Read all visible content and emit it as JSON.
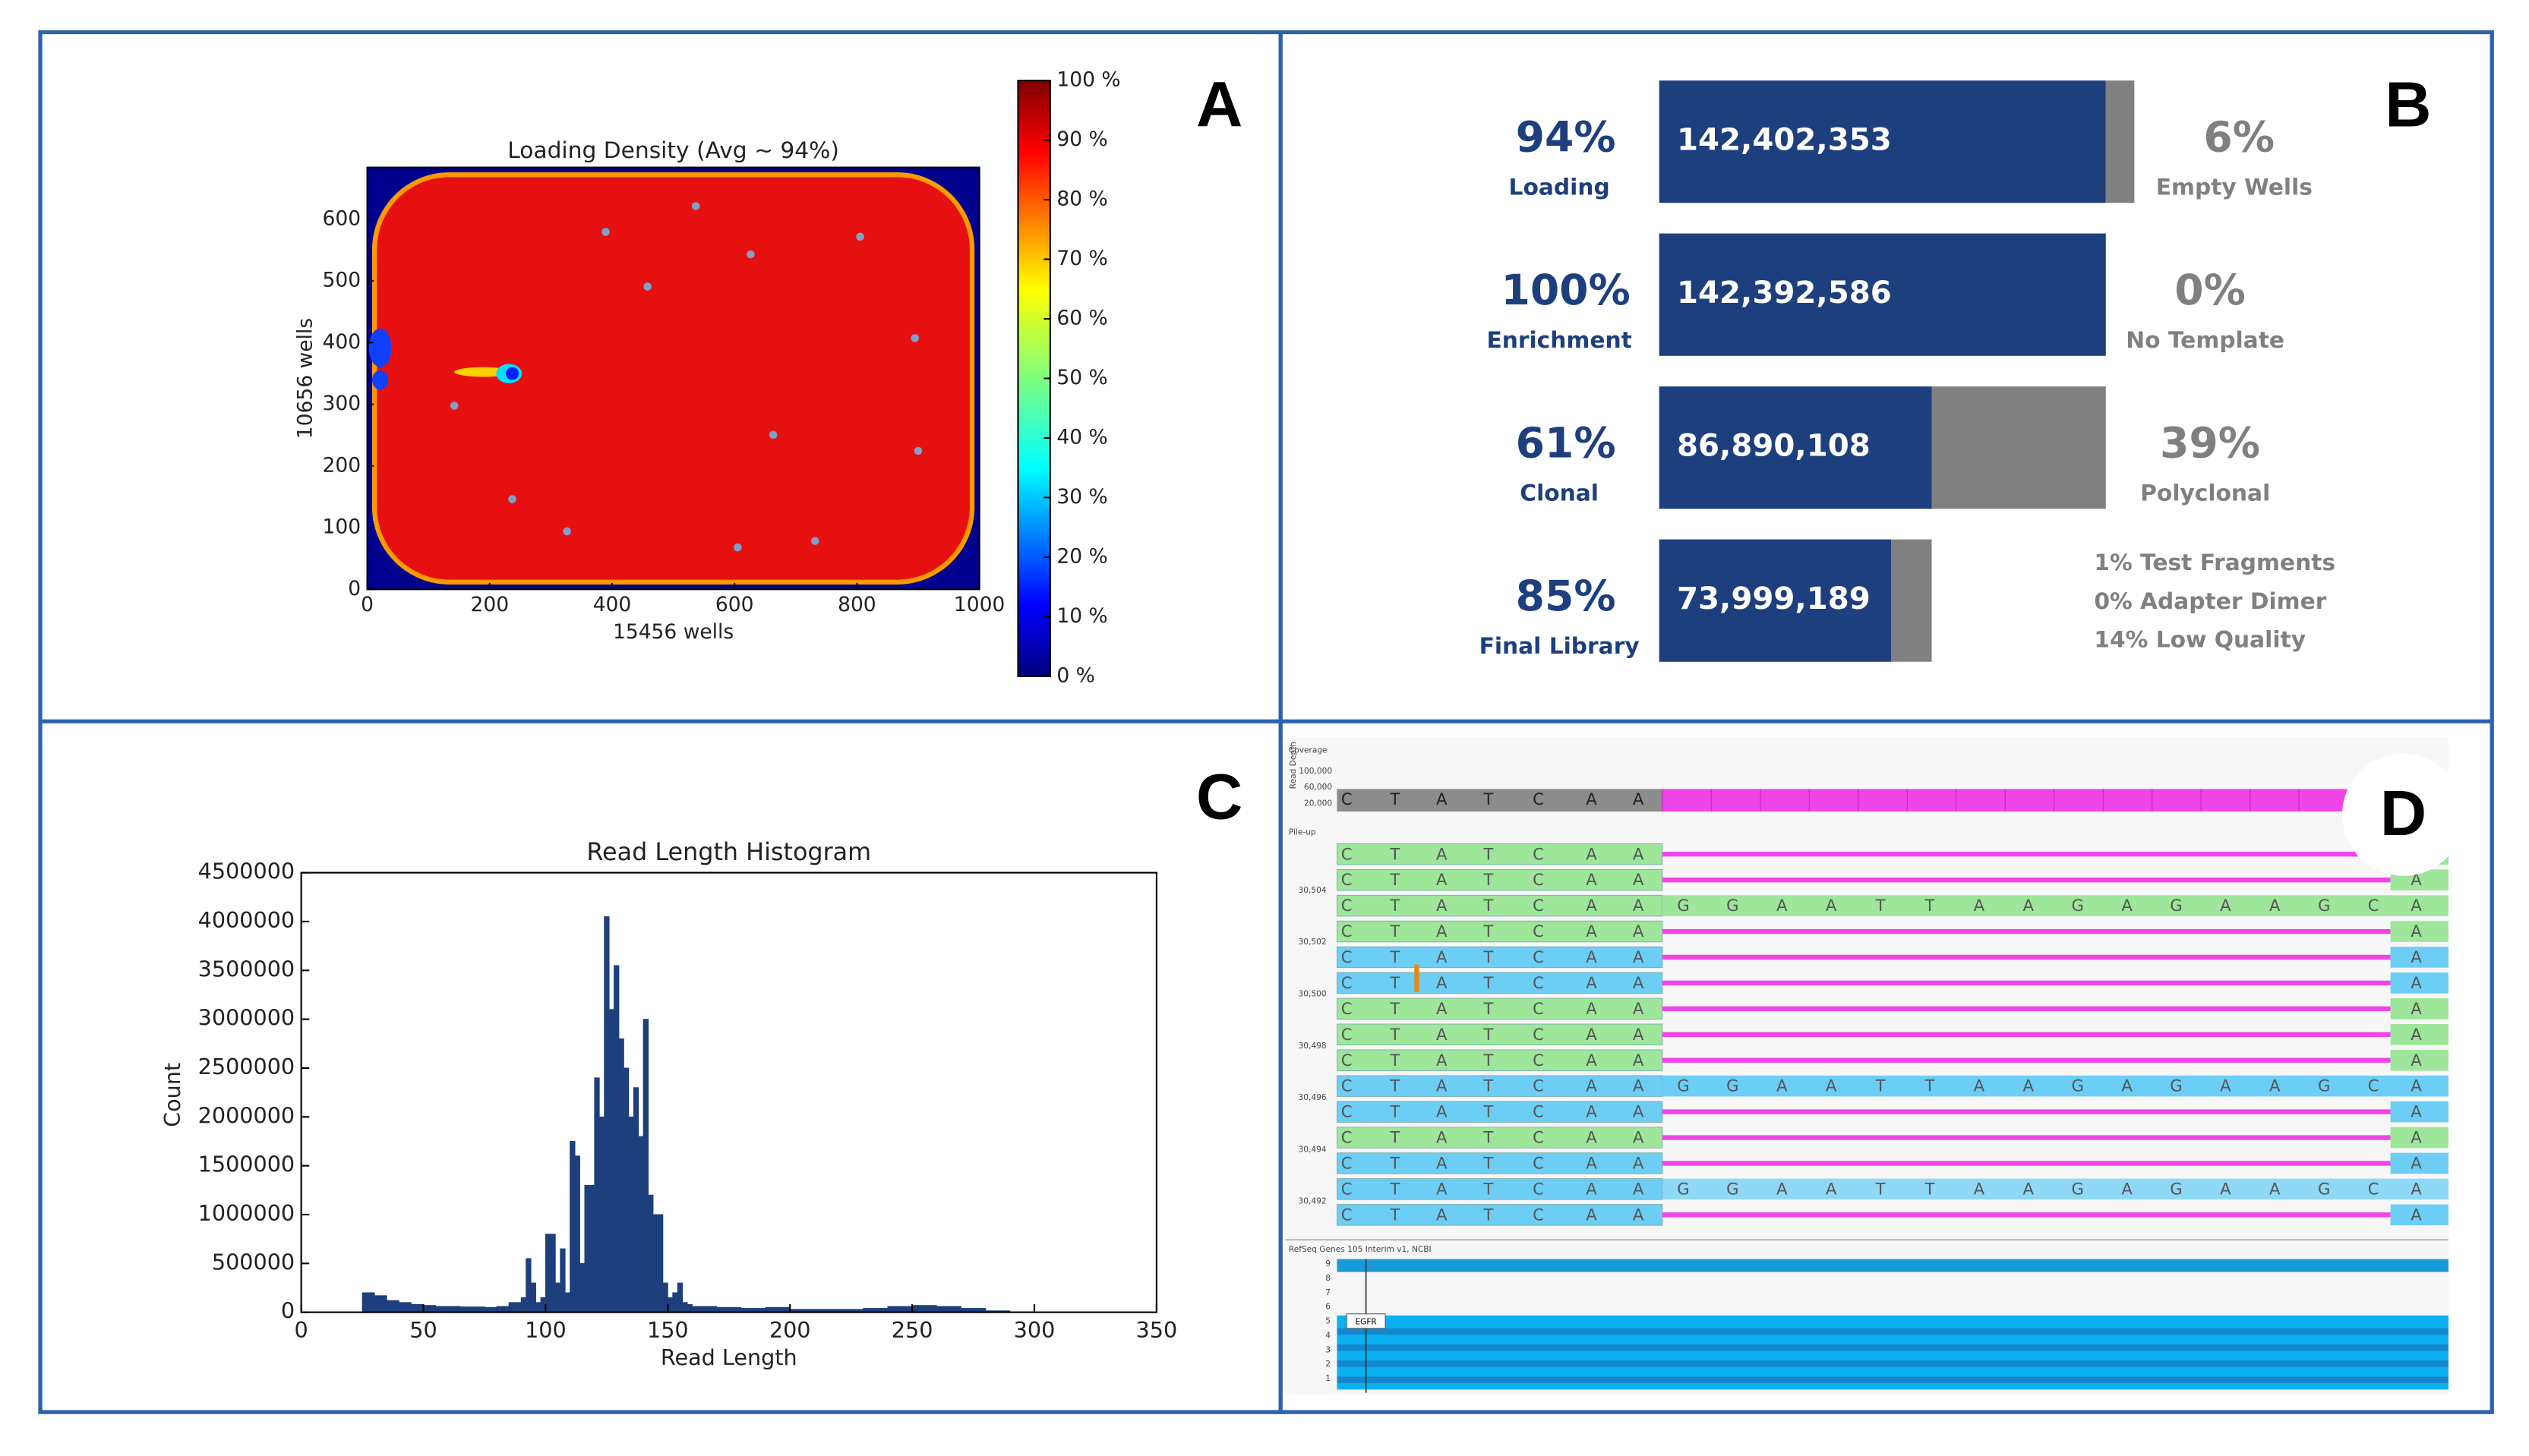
{
  "chart_data": [
    {
      "type": "heatmap",
      "label": "A",
      "title": "Loading Density (Avg ~ 94%)",
      "x_label": "15456 wells",
      "y_label": "10656 wells",
      "xlim": [
        0,
        1000
      ],
      "ylim": [
        0,
        684
      ],
      "xticks": [
        0,
        200,
        400,
        600,
        800,
        1000
      ],
      "yticks": [
        0,
        100,
        200,
        300,
        400,
        500,
        600
      ],
      "colormap": "jet",
      "colorbar": {
        "lim": [
          0,
          100
        ],
        "ticks": [
          {
            "value": 100,
            "label": "100 %"
          },
          {
            "value": 90,
            "label": "90 %"
          },
          {
            "value": 80,
            "label": "80 %"
          },
          {
            "value": 70,
            "label": "70 %"
          },
          {
            "value": 60,
            "label": "60 %"
          },
          {
            "value": 50,
            "label": "50 %"
          },
          {
            "value": 40,
            "label": "40 %"
          },
          {
            "value": 30,
            "label": "30 %"
          },
          {
            "value": 20,
            "label": "20 %"
          },
          {
            "value": 10,
            "label": "10 %"
          },
          {
            "value": 0,
            "label": "0 %"
          }
        ]
      }
    },
    {
      "type": "funnel",
      "label": "B",
      "categories": [
        "Loading",
        "Enrichment",
        "Clonal",
        "Final Library"
      ],
      "series": [
        {
          "color": "#1d3f7d",
          "values": [
            142402353,
            142392586,
            86890108,
            73999189
          ],
          "value_labels": [
            "142,402,353",
            "142,392,586",
            "86,890,108",
            "73,999,189"
          ]
        },
        {
          "color": "#808080",
          "values": [
            9090000,
            9767,
            55502478,
            12890919
          ]
        }
      ],
      "xlim": [
        0,
        151492353
      ],
      "percent_labels": [
        "94%",
        "100%",
        "61%",
        "85%"
      ],
      "remainder_percent_labels": [
        "6%",
        "0%",
        "39%"
      ],
      "remainder_names": [
        "Empty Wells",
        "No Template",
        "Polyclonal"
      ],
      "notes": [
        "1% Test Fragments",
        "0% Adapter Dimer",
        "14% Low Quality"
      ]
    },
    {
      "type": "histogram",
      "label": "C",
      "title": "Read Length Histogram",
      "x_label": "Read Length",
      "y_label": "Count",
      "color": "#1d3f7d",
      "bins": [
        25,
        30,
        35,
        40,
        45,
        50,
        55,
        60,
        65,
        70,
        75,
        80,
        85,
        90,
        92,
        94,
        96,
        98,
        100,
        102,
        104,
        106,
        108,
        110,
        112,
        114,
        116,
        118,
        120,
        122,
        124,
        126,
        128,
        130,
        132,
        134,
        136,
        138,
        140,
        142,
        144,
        146,
        148,
        150,
        152,
        154,
        156,
        158,
        160,
        170,
        180,
        190,
        200,
        210,
        220,
        230,
        240,
        250,
        260,
        270,
        280,
        290,
        300
      ],
      "counts": [
        200000,
        170000,
        120000,
        100000,
        80000,
        70000,
        60000,
        60000,
        55000,
        55000,
        50000,
        60000,
        100000,
        150000,
        550000,
        300000,
        100000,
        150000,
        800000,
        800000,
        300000,
        650000,
        200000,
        1750000,
        1600000,
        500000,
        1300000,
        1300000,
        2400000,
        2000000,
        4050000,
        3100000,
        3550000,
        2800000,
        2500000,
        2000000,
        2300000,
        1800000,
        3000000,
        1200000,
        1000000,
        1000000,
        300000,
        150000,
        200000,
        300000,
        100000,
        80000,
        60000,
        50000,
        40000,
        50000,
        30000,
        30000,
        30000,
        40000,
        60000,
        70000,
        60000,
        40000,
        15000,
        5000
      ],
      "xlim": [
        0,
        350
      ],
      "ylim": [
        0,
        4500000
      ],
      "xticks": [
        0,
        50,
        100,
        150,
        200,
        250,
        300,
        350
      ],
      "yticks": [
        0,
        500000,
        1000000,
        1500000,
        2000000,
        2500000,
        3000000,
        3500000,
        4000000,
        4500000
      ]
    }
  ],
  "genome_view": {
    "label": "D",
    "coverage_title": "Coverage",
    "read_depth_label": "Read Depth",
    "depth_ticks": [
      "100,000",
      "60,000",
      "20,000"
    ],
    "pileup_title": "Pile-up",
    "position_labels": [
      "30,504",
      "30,502",
      "30,500",
      "30,498",
      "30,496",
      "30,494",
      "30,492"
    ],
    "reference_bases": [
      "C",
      "T",
      "A",
      "T",
      "C",
      "A",
      "A"
    ],
    "insert_bases": [
      "G",
      "G",
      "A",
      "A",
      "T",
      "T",
      "A",
      "A",
      "G",
      "A",
      "G",
      "A",
      "A",
      "G",
      "C"
    ],
    "tail_base": "A",
    "track_title": "RefSeq Genes 105 Interim v1, NCBI",
    "track_ticks": [
      "9",
      "8",
      "7",
      "6",
      "5",
      "4",
      "3",
      "2",
      "1"
    ],
    "gene": "EGFR"
  }
}
